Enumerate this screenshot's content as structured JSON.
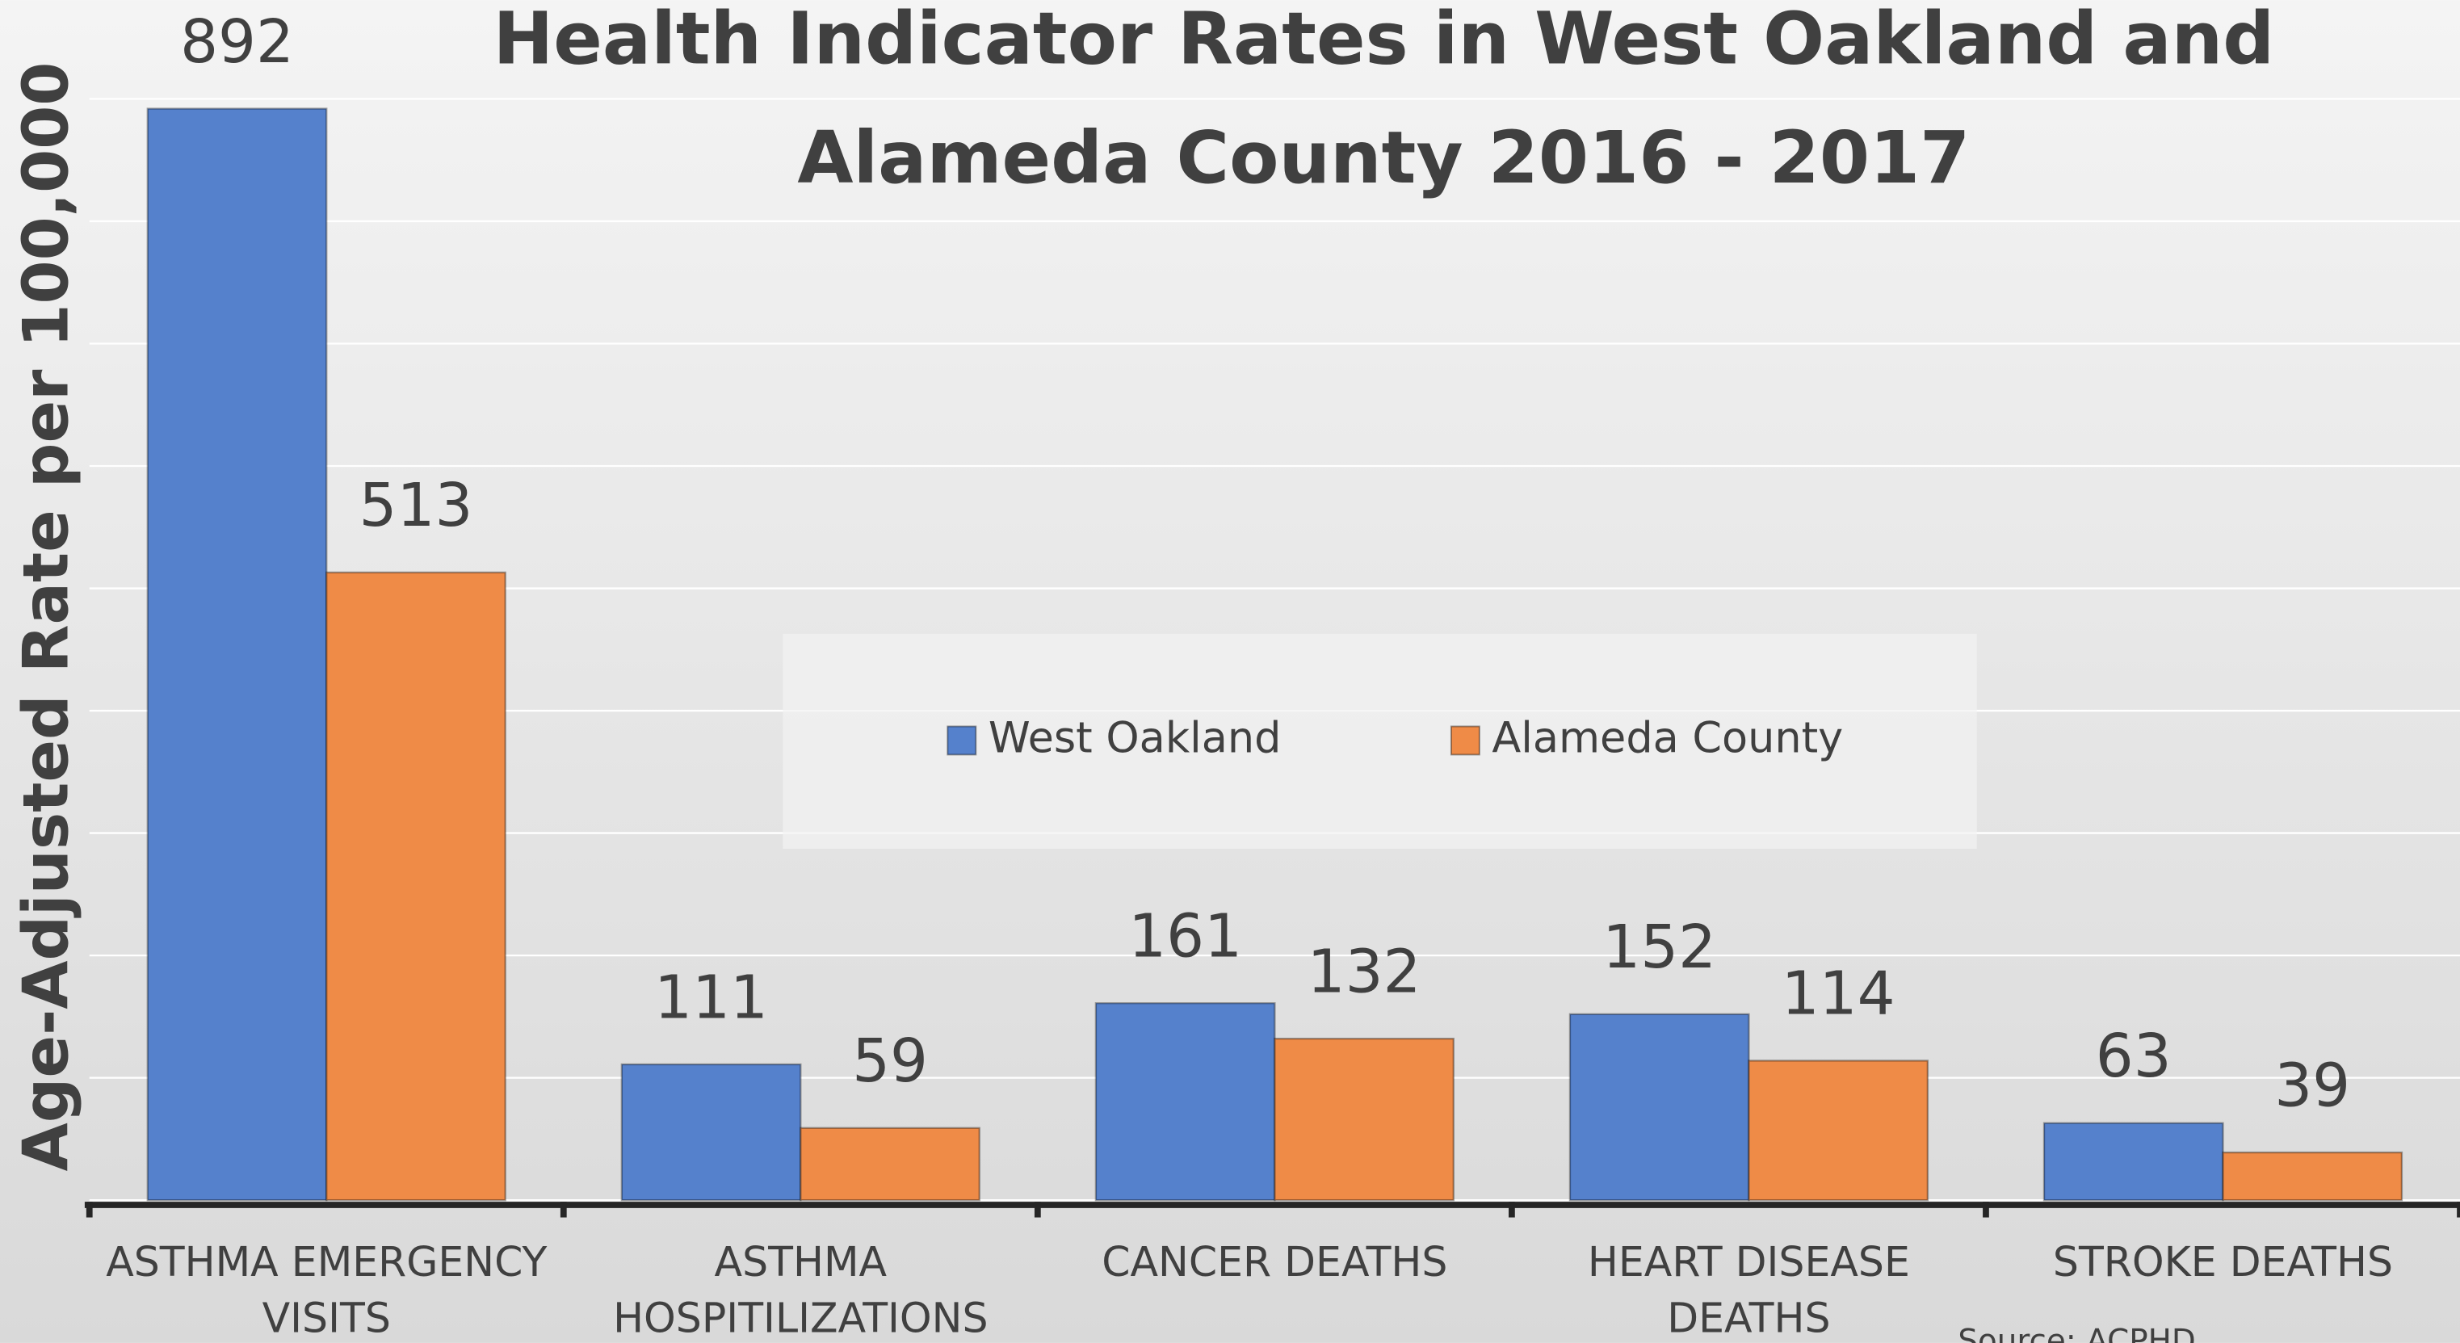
{
  "chart_data": {
    "type": "bar",
    "title": "Health Indicator Rates in West Oakland and Alameda County 2016 - 2017",
    "ylabel": "Age-Adjusted Rate per 100,000",
    "categories": [
      "ASTHMA EMERGENCY VISITS",
      "ASTHMA HOSPITILIZATIONS",
      "CANCER DEATHS",
      "HEART DISEASE DEATHS",
      "STROKE DEATHS"
    ],
    "series": [
      {
        "name": "West Oakland",
        "color": "#5581cc",
        "values": [
          892,
          111,
          161,
          152,
          63
        ]
      },
      {
        "name": "Alameda County",
        "color": "#ef8b47",
        "values": [
          513,
          59,
          132,
          114,
          39
        ]
      }
    ],
    "ylim": [
      0,
      900
    ],
    "yticks": [
      0,
      100,
      200,
      300,
      400,
      500,
      600,
      700,
      800,
      900
    ],
    "grid": true,
    "tick_labels": false,
    "legend": "center",
    "source": "Source: ACPHD"
  }
}
